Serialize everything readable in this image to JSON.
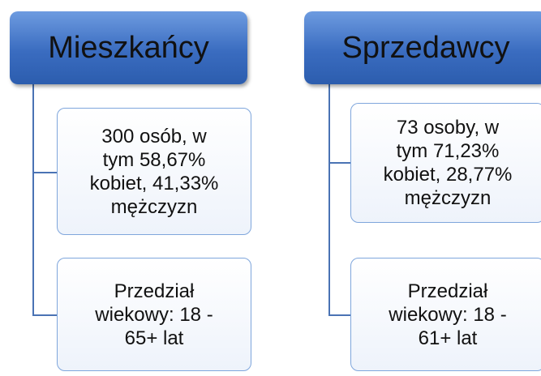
{
  "nodes": [
    {
      "label": "Mieszkańcy",
      "children": [
        {
          "lines": [
            "300 osób, w",
            "tym 58,67%",
            "kobiet, 41,33%",
            "mężczyzn"
          ]
        },
        {
          "lines": [
            "Przedział",
            "wiekowy: 18 -",
            "65+ lat"
          ]
        }
      ]
    },
    {
      "label": "Sprzedawcy",
      "children": [
        {
          "lines": [
            "73 osoby, w",
            "tym 71,23%",
            "kobiet, 28,77%",
            "mężczyzn"
          ]
        },
        {
          "lines": [
            "Przedział",
            "wiekowy: 18 -",
            "61+ lat"
          ]
        }
      ]
    }
  ]
}
